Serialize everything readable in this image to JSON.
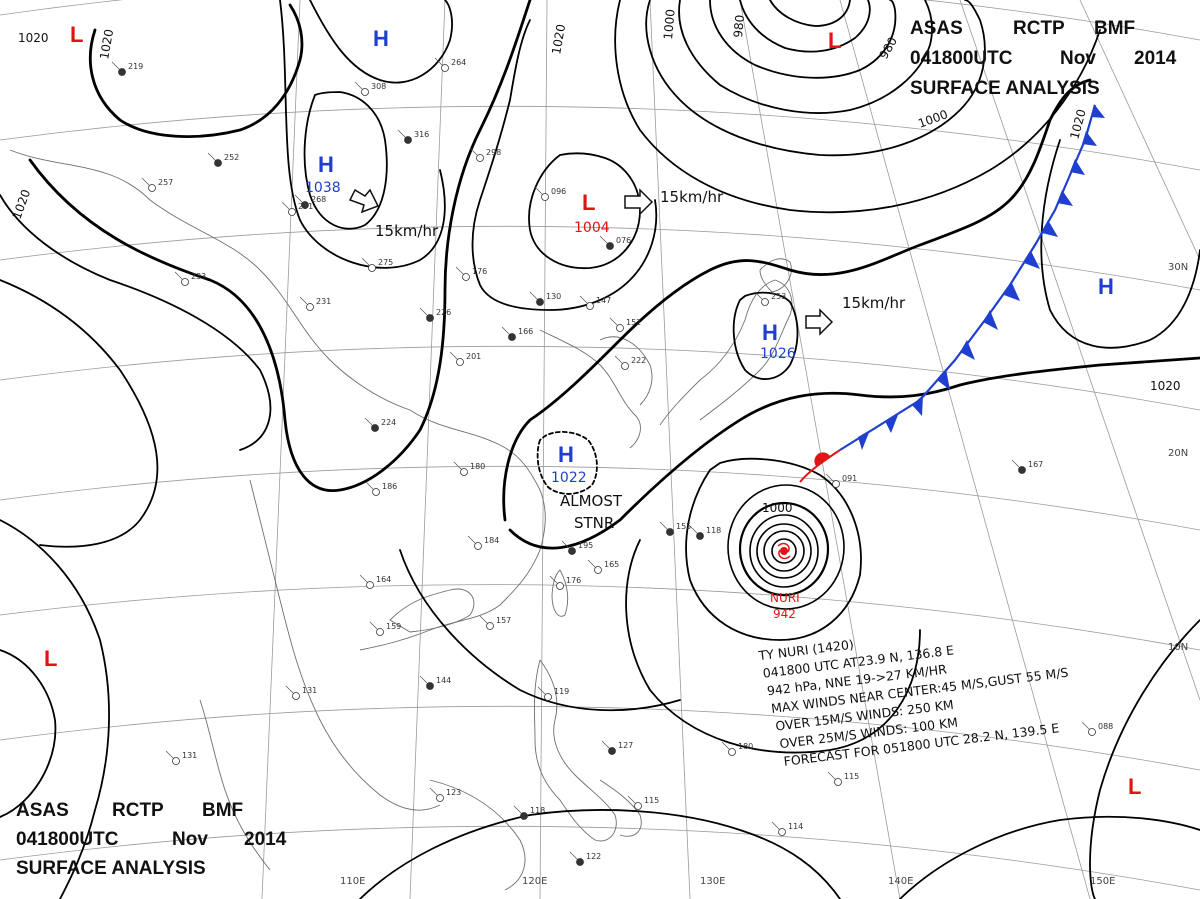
{
  "header_top": {
    "line1": [
      "ASAS",
      "RCTP",
      "BMF"
    ],
    "line2": [
      "041800UTC",
      "Nov",
      "2014"
    ],
    "line3": "SURFACE ANALYSIS"
  },
  "header_bottom": {
    "line1": [
      "ASAS",
      "RCTP",
      "BMF"
    ],
    "line2": [
      "041800UTC",
      "Nov",
      "2014"
    ],
    "line3": "SURFACE ANALYSIS"
  },
  "pressure_centers": [
    {
      "type": "L",
      "value": ""
    },
    {
      "type": "H",
      "value": ""
    },
    {
      "type": "H",
      "value": "1038"
    },
    {
      "type": "L",
      "value": "1004"
    },
    {
      "type": "H",
      "value": "1026"
    },
    {
      "type": "L",
      "value": ""
    },
    {
      "type": "H",
      "value": ""
    },
    {
      "type": "H",
      "value": "1022"
    },
    {
      "type": "L",
      "value": ""
    },
    {
      "type": "L",
      "value": ""
    }
  ],
  "motions": [
    "15km/hr",
    "15km/hr",
    "15km/hr"
  ],
  "stationary_label": [
    "ALMOST",
    "STNR"
  ],
  "isobar_labels": [
    "1020",
    "1020",
    "1020",
    "1020",
    "1020",
    "1000",
    "1000",
    "1000",
    "980",
    "980",
    "1020"
  ],
  "typhoon": {
    "name": "NURI",
    "pressure": "942",
    "info": [
      "TY NURI (1420)",
      "041800 UTC  AT23.9 N, 136.8 E",
      "942 hPa, NNE  19->27 KM/HR",
      "MAX WINDS NEAR CENTER:45 M/S,GUST 55 M/S",
      "OVER 15M/S WINDS: 250 KM",
      "OVER 25M/S WINDS: 100 KM",
      "FORECAST FOR 051800 UTC 28.2 N, 139.5 E"
    ]
  },
  "lat_labels": [
    "30N",
    "20N",
    "10N"
  ],
  "lon_labels": [
    "110E",
    "120E",
    "130E",
    "140E",
    "150E"
  ],
  "station_values": [
    "219",
    "308",
    "264",
    "316",
    "298",
    "291",
    "268",
    "275",
    "257",
    "252",
    "233",
    "231",
    "226",
    "201",
    "176",
    "224",
    "180",
    "186",
    "166",
    "152",
    "222",
    "130",
    "147",
    "096",
    "076",
    "253",
    "184",
    "195",
    "176",
    "165",
    "155",
    "159",
    "157",
    "144",
    "131",
    "119",
    "127",
    "131",
    "123",
    "118",
    "115",
    "114",
    "122",
    "180",
    "115",
    "167",
    "088",
    "091",
    "118",
    "164"
  ]
}
